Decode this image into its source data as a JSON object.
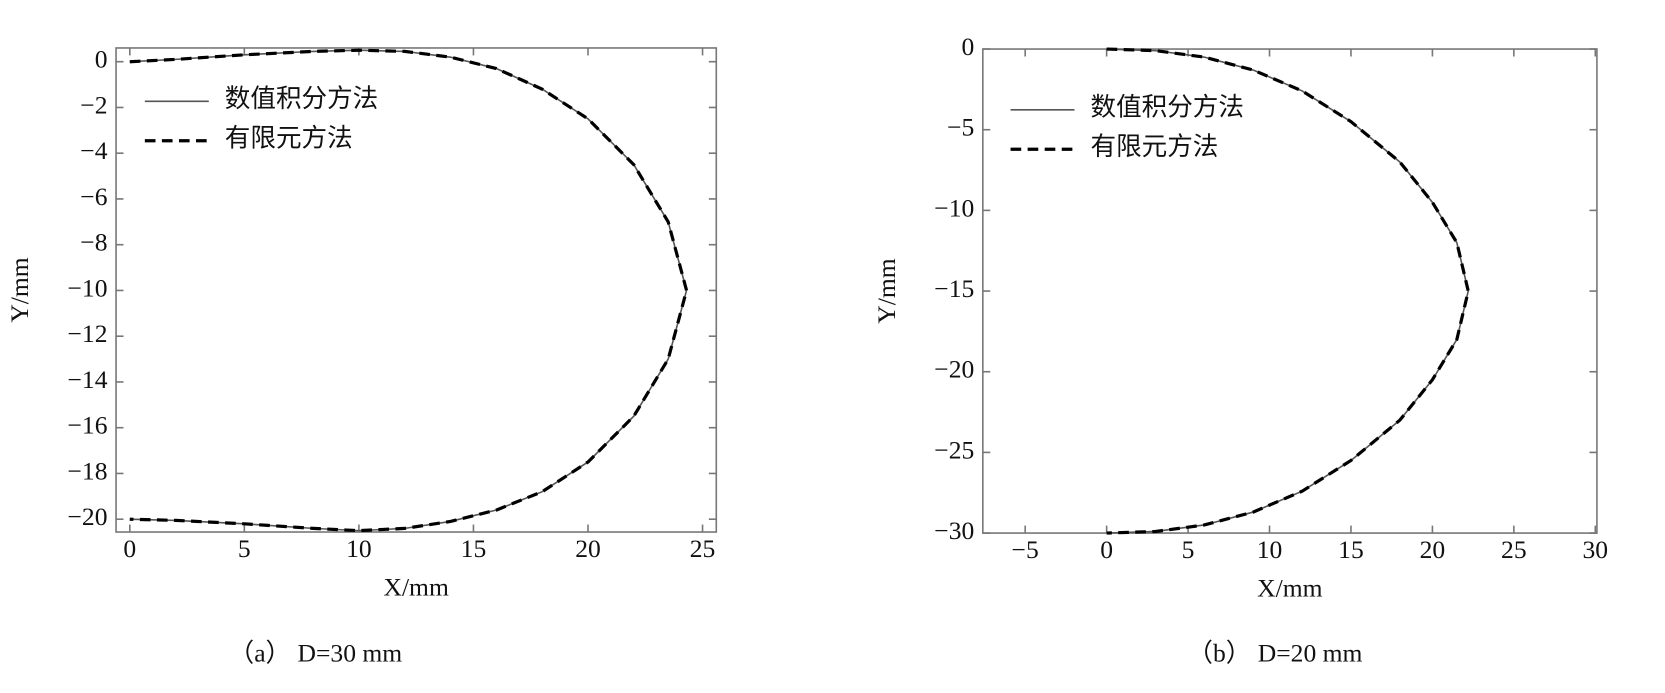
{
  "chart_data": [
    {
      "type": "line",
      "xlabel": "X/mm",
      "ylabel": "Y/mm",
      "caption": "（a）  D=30 mm",
      "xlim": [
        -0.6,
        25.6
      ],
      "ylim": [
        -20.56,
        0.6
      ],
      "xticks": [
        0,
        5,
        10,
        15,
        20,
        25
      ],
      "yticks": [
        0,
        {
          "value": -2,
          "label": "−2"
        },
        {
          "value": -4,
          "label": "−4"
        },
        {
          "value": -6,
          "label": "−6"
        },
        {
          "value": -8,
          "label": "−8"
        },
        {
          "value": -10,
          "label": "−10"
        },
        {
          "value": -12,
          "label": "−12"
        },
        {
          "value": -14,
          "label": "−14"
        },
        {
          "value": -16,
          "label": "−16"
        },
        {
          "value": -18,
          "label": "−18"
        },
        {
          "value": -20,
          "label": "−20"
        }
      ],
      "legend": "upper left",
      "x": [
        0,
        2,
        5,
        8,
        10,
        12,
        14,
        16,
        18,
        20,
        22,
        23.5,
        24.3,
        23.5,
        22,
        20,
        18,
        16,
        14,
        12,
        10,
        8,
        5,
        2,
        0
      ],
      "series": [
        {
          "name": "数值积分方法",
          "color": "#555555",
          "style": "solid",
          "values": [
            0,
            0.1,
            0.3,
            0.45,
            0.5,
            0.45,
            0.2,
            -0.3,
            -1.2,
            -2.5,
            -4.5,
            -7,
            -10,
            -13,
            -15.5,
            -17.5,
            -18.8,
            -19.6,
            -20.1,
            -20.4,
            -20.5,
            -20.4,
            -20.2,
            -20.05,
            -20
          ]
        },
        {
          "name": "有限元方法",
          "color": "#000000",
          "style": "dashed",
          "values": [
            0,
            0.1,
            0.3,
            0.45,
            0.5,
            0.45,
            0.2,
            -0.3,
            -1.2,
            -2.5,
            -4.5,
            -7,
            -10,
            -13,
            -15.5,
            -17.5,
            -18.8,
            -19.6,
            -20.1,
            -20.4,
            -20.5,
            -20.4,
            -20.2,
            -20.05,
            -20
          ]
        }
      ]
    },
    {
      "type": "line",
      "xlabel": "X/mm",
      "ylabel": "Y/mm",
      "caption": "（b）  D=20 mm",
      "xlim": [
        -7.6,
        30.1
      ],
      "ylim": [
        -30,
        0
      ],
      "xticks": [
        {
          "value": -5,
          "label": "−5"
        },
        0,
        5,
        10,
        15,
        20,
        25,
        30
      ],
      "yticks": [
        0,
        {
          "value": -5,
          "label": "−5"
        },
        {
          "value": -10,
          "label": "−10"
        },
        {
          "value": -15,
          "label": "−15"
        },
        {
          "value": -20,
          "label": "−20"
        },
        {
          "value": -25,
          "label": "−25"
        },
        {
          "value": -30,
          "label": "−30"
        }
      ],
      "legend": "upper left",
      "x": [
        0,
        3,
        6,
        9,
        12,
        15,
        18,
        20,
        21.5,
        22.2,
        21.5,
        20,
        18,
        15,
        12,
        9,
        6,
        3,
        0
      ],
      "series": [
        {
          "name": "数值积分方法",
          "color": "#555555",
          "style": "solid",
          "values": [
            0,
            -0.1,
            -0.5,
            -1.3,
            -2.6,
            -4.5,
            -7,
            -9.5,
            -12,
            -15,
            -18,
            -20.5,
            -23,
            -25.5,
            -27.4,
            -28.7,
            -29.5,
            -29.9,
            -30
          ]
        },
        {
          "name": "有限元方法",
          "color": "#000000",
          "style": "dashed",
          "values": [
            0,
            -0.1,
            -0.5,
            -1.3,
            -2.6,
            -4.5,
            -7,
            -9.5,
            -12,
            -15,
            -18,
            -20.5,
            -23,
            -25.5,
            -27.4,
            -28.7,
            -29.5,
            -29.9,
            -30
          ]
        }
      ]
    }
  ]
}
